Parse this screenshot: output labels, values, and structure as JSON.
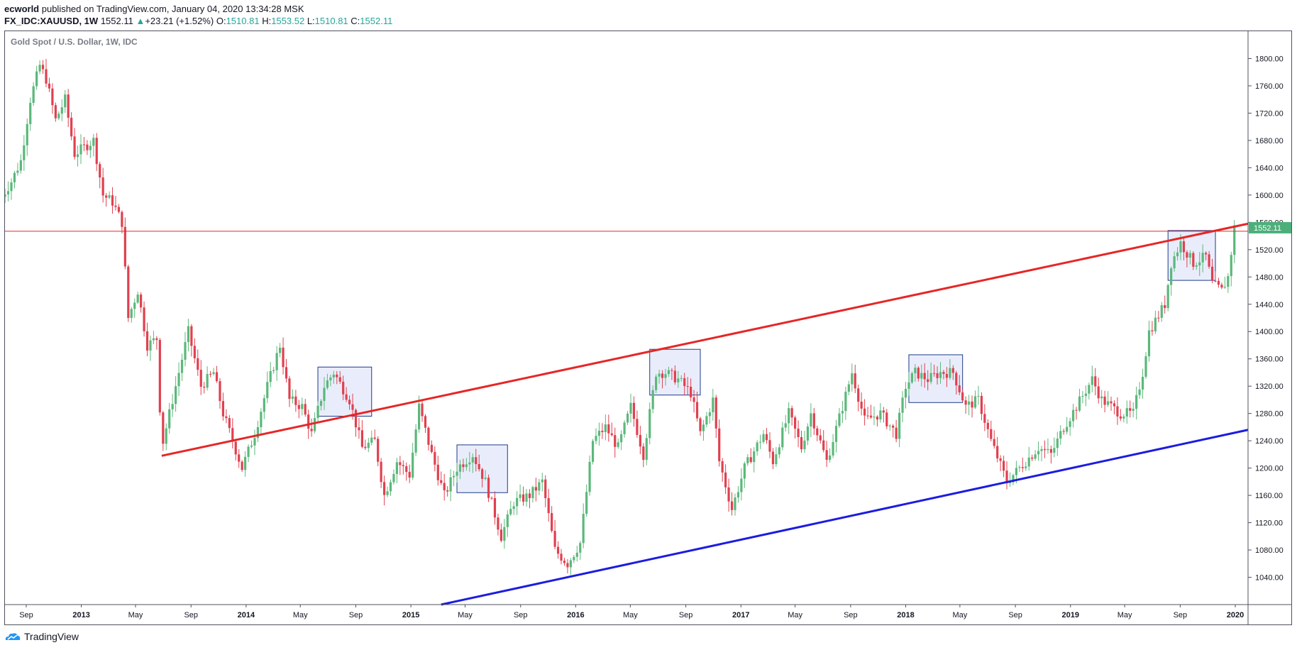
{
  "header": {
    "author": "ecworld",
    "published_text": " published on TradingView.com, January 04, 2020 13:34:28 MSK",
    "symbol": "FX_IDC:XAUUSD, 1W",
    "last": "1552.11",
    "change_arrow": "▲",
    "change": "+23.21 (+1.52%)",
    "o_label": "O:",
    "o_value": "1510.81",
    "h_label": "H:",
    "h_value": "1553.52",
    "l_label": "L:",
    "l_value": "1510.81",
    "c_label": "C:",
    "c_value": "1552.11"
  },
  "footer": {
    "brand": "TradingView",
    "logo_icon": "tradingview-cloud-icon"
  },
  "colors": {
    "up": "#26a69a",
    "up_candle": "#5bb87a",
    "down_candle": "#e0404f",
    "resistance_line": "#e62626",
    "support_line": "#1c1ce0",
    "price_line": "#e62626",
    "price_label_bg": "#4caf7a",
    "box_fill": "#dfe6fa",
    "box_stroke": "#1e3a8a"
  },
  "chart_data": {
    "type": "candlestick",
    "title": "Gold Spot / U.S. Dollar, 1W, IDC",
    "x_ticks": [
      {
        "date": "2012-09",
        "label": "Sep"
      },
      {
        "date": "2013-01",
        "label": "2013"
      },
      {
        "date": "2013-05",
        "label": "May"
      },
      {
        "date": "2013-09",
        "label": "Sep"
      },
      {
        "date": "2014-01",
        "label": "2014"
      },
      {
        "date": "2014-05",
        "label": "May"
      },
      {
        "date": "2014-09",
        "label": "Sep"
      },
      {
        "date": "2015-01",
        "label": "2015"
      },
      {
        "date": "2015-05",
        "label": "May"
      },
      {
        "date": "2015-09",
        "label": "Sep"
      },
      {
        "date": "2016-01",
        "label": "2016"
      },
      {
        "date": "2016-05",
        "label": "May"
      },
      {
        "date": "2016-09",
        "label": "Sep"
      },
      {
        "date": "2017-01",
        "label": "2017"
      },
      {
        "date": "2017-05",
        "label": "May"
      },
      {
        "date": "2017-09",
        "label": "Sep"
      },
      {
        "date": "2018-01",
        "label": "2018"
      },
      {
        "date": "2018-05",
        "label": "May"
      },
      {
        "date": "2018-09",
        "label": "Sep"
      },
      {
        "date": "2019-01",
        "label": "2019"
      },
      {
        "date": "2019-05",
        "label": "May"
      },
      {
        "date": "2019-09",
        "label": "Sep"
      },
      {
        "date": "2020-01",
        "label": "2020"
      }
    ],
    "y_ticks": [
      {
        "value": 1040,
        "label": "1040.00"
      },
      {
        "value": 1080,
        "label": "1080.00"
      },
      {
        "value": 1120,
        "label": "1120.00"
      },
      {
        "value": 1160,
        "label": "1160.00"
      },
      {
        "value": 1200,
        "label": "1200.00"
      },
      {
        "value": 1240,
        "label": "1240.00"
      },
      {
        "value": 1280,
        "label": "1280.00"
      },
      {
        "value": 1320,
        "label": "1320.00"
      },
      {
        "value": 1360,
        "label": "1360.00"
      },
      {
        "value": 1400,
        "label": "1400.00"
      },
      {
        "value": 1440,
        "label": "1440.00"
      },
      {
        "value": 1480,
        "label": "1480.00"
      },
      {
        "value": 1520,
        "label": "1520.00"
      },
      {
        "value": 1560,
        "label": "1560.00"
      },
      {
        "value": 1600,
        "label": "1600.00"
      },
      {
        "value": 1640,
        "label": "1640.00"
      },
      {
        "value": 1680,
        "label": "1680.00"
      },
      {
        "value": 1720,
        "label": "1720.00"
      },
      {
        "value": 1760,
        "label": "1760.00"
      },
      {
        "value": 1800,
        "label": "1800.00"
      }
    ],
    "ylim": [
      1000,
      1840
    ],
    "current_price": {
      "value": 1552.11,
      "label": "1552.11"
    },
    "horizontal_line": {
      "value": 1547
    },
    "close_path": [
      [
        "2012-07-02",
        1590
      ],
      [
        "2012-07-30",
        1620
      ],
      [
        "2012-08-20",
        1650
      ],
      [
        "2012-09-10",
        1740
      ],
      [
        "2012-10-01",
        1790
      ],
      [
        "2012-10-15",
        1770
      ],
      [
        "2012-11-05",
        1710
      ],
      [
        "2012-11-26",
        1740
      ],
      [
        "2012-12-17",
        1660
      ],
      [
        "2013-01-07",
        1670
      ],
      [
        "2013-01-28",
        1680
      ],
      [
        "2013-02-18",
        1600
      ],
      [
        "2013-03-11",
        1590
      ],
      [
        "2013-04-01",
        1560
      ],
      [
        "2013-04-15",
        1420
      ],
      [
        "2013-05-06",
        1460
      ],
      [
        "2013-05-27",
        1380
      ],
      [
        "2013-06-17",
        1390
      ],
      [
        "2013-06-28",
        1230
      ],
      [
        "2013-07-22",
        1300
      ],
      [
        "2013-08-26",
        1400
      ],
      [
        "2013-09-23",
        1320
      ],
      [
        "2013-10-21",
        1340
      ],
      [
        "2013-11-11",
        1280
      ],
      [
        "2013-12-23",
        1200
      ],
      [
        "2014-01-20",
        1250
      ],
      [
        "2014-02-17",
        1320
      ],
      [
        "2014-03-17",
        1380
      ],
      [
        "2014-04-07",
        1300
      ],
      [
        "2014-05-05",
        1290
      ],
      [
        "2014-05-26",
        1250
      ],
      [
        "2014-06-23",
        1320
      ],
      [
        "2014-07-14",
        1340
      ],
      [
        "2014-08-18",
        1300
      ],
      [
        "2014-09-15",
        1230
      ],
      [
        "2014-10-13",
        1240
      ],
      [
        "2014-11-03",
        1160
      ],
      [
        "2014-12-01",
        1210
      ],
      [
        "2014-12-29",
        1190
      ],
      [
        "2015-01-19",
        1290
      ],
      [
        "2015-02-16",
        1220
      ],
      [
        "2015-03-16",
        1160
      ],
      [
        "2015-04-13",
        1200
      ],
      [
        "2015-05-18",
        1220
      ],
      [
        "2015-06-15",
        1180
      ],
      [
        "2015-07-20",
        1100
      ],
      [
        "2015-08-17",
        1150
      ],
      [
        "2015-09-21",
        1160
      ],
      [
        "2015-10-19",
        1180
      ],
      [
        "2015-11-16",
        1080
      ],
      [
        "2015-12-14",
        1060
      ],
      [
        "2016-01-11",
        1090
      ],
      [
        "2016-02-08",
        1240
      ],
      [
        "2016-03-07",
        1260
      ],
      [
        "2016-04-04",
        1230
      ],
      [
        "2016-05-02",
        1290
      ],
      [
        "2016-05-30",
        1220
      ],
      [
        "2016-06-27",
        1340
      ],
      [
        "2016-07-18",
        1340
      ],
      [
        "2016-08-15",
        1330
      ],
      [
        "2016-09-12",
        1310
      ],
      [
        "2016-10-03",
        1250
      ],
      [
        "2016-10-31",
        1300
      ],
      [
        "2016-11-14",
        1210
      ],
      [
        "2016-12-12",
        1140
      ],
      [
        "2017-01-09",
        1200
      ],
      [
        "2017-02-20",
        1250
      ],
      [
        "2017-03-13",
        1210
      ],
      [
        "2017-04-17",
        1280
      ],
      [
        "2017-05-15",
        1230
      ],
      [
        "2017-06-05",
        1280
      ],
      [
        "2017-07-10",
        1210
      ],
      [
        "2017-08-14",
        1290
      ],
      [
        "2017-09-04",
        1340
      ],
      [
        "2017-10-02",
        1270
      ],
      [
        "2017-11-06",
        1280
      ],
      [
        "2017-12-11",
        1250
      ],
      [
        "2018-01-01",
        1320
      ],
      [
        "2018-01-22",
        1340
      ],
      [
        "2018-02-19",
        1330
      ],
      [
        "2018-03-19",
        1340
      ],
      [
        "2018-04-16",
        1340
      ],
      [
        "2018-05-14",
        1290
      ],
      [
        "2018-06-11",
        1300
      ],
      [
        "2018-07-09",
        1240
      ],
      [
        "2018-08-13",
        1180
      ],
      [
        "2018-09-10",
        1200
      ],
      [
        "2018-10-22",
        1230
      ],
      [
        "2018-11-19",
        1220
      ],
      [
        "2018-12-17",
        1260
      ],
      [
        "2019-01-14",
        1290
      ],
      [
        "2019-02-18",
        1330
      ],
      [
        "2019-03-11",
        1300
      ],
      [
        "2019-04-22",
        1280
      ],
      [
        "2019-05-20",
        1280
      ],
      [
        "2019-06-10",
        1340
      ],
      [
        "2019-06-24",
        1400
      ],
      [
        "2019-07-29",
        1440
      ],
      [
        "2019-08-12",
        1500
      ],
      [
        "2019-09-02",
        1530
      ],
      [
        "2019-09-30",
        1500
      ],
      [
        "2019-10-28",
        1510
      ],
      [
        "2019-11-11",
        1470
      ],
      [
        "2019-12-02",
        1460
      ],
      [
        "2019-12-16",
        1480
      ],
      [
        "2019-12-30",
        1552
      ]
    ],
    "trendlines": [
      {
        "role": "resistance",
        "from": [
          "2013-06-28",
          1218
        ],
        "to": [
          "2020-02-24",
          1558
        ]
      },
      {
        "role": "support",
        "from": [
          "2015-03-09",
          1000
        ],
        "to": [
          "2020-02-24",
          1256
        ]
      }
    ],
    "boxes": [
      {
        "from": "2014-06-09",
        "to": "2014-10-06",
        "high": 1348,
        "low": 1276
      },
      {
        "from": "2015-04-13",
        "to": "2015-08-03",
        "high": 1234,
        "low": 1164
      },
      {
        "from": "2016-06-13",
        "to": "2016-10-03",
        "high": 1374,
        "low": 1307
      },
      {
        "from": "2018-01-08",
        "to": "2018-05-07",
        "high": 1366,
        "low": 1296
      },
      {
        "from": "2019-08-05",
        "to": "2019-11-18",
        "high": 1548,
        "low": 1475
      }
    ]
  }
}
